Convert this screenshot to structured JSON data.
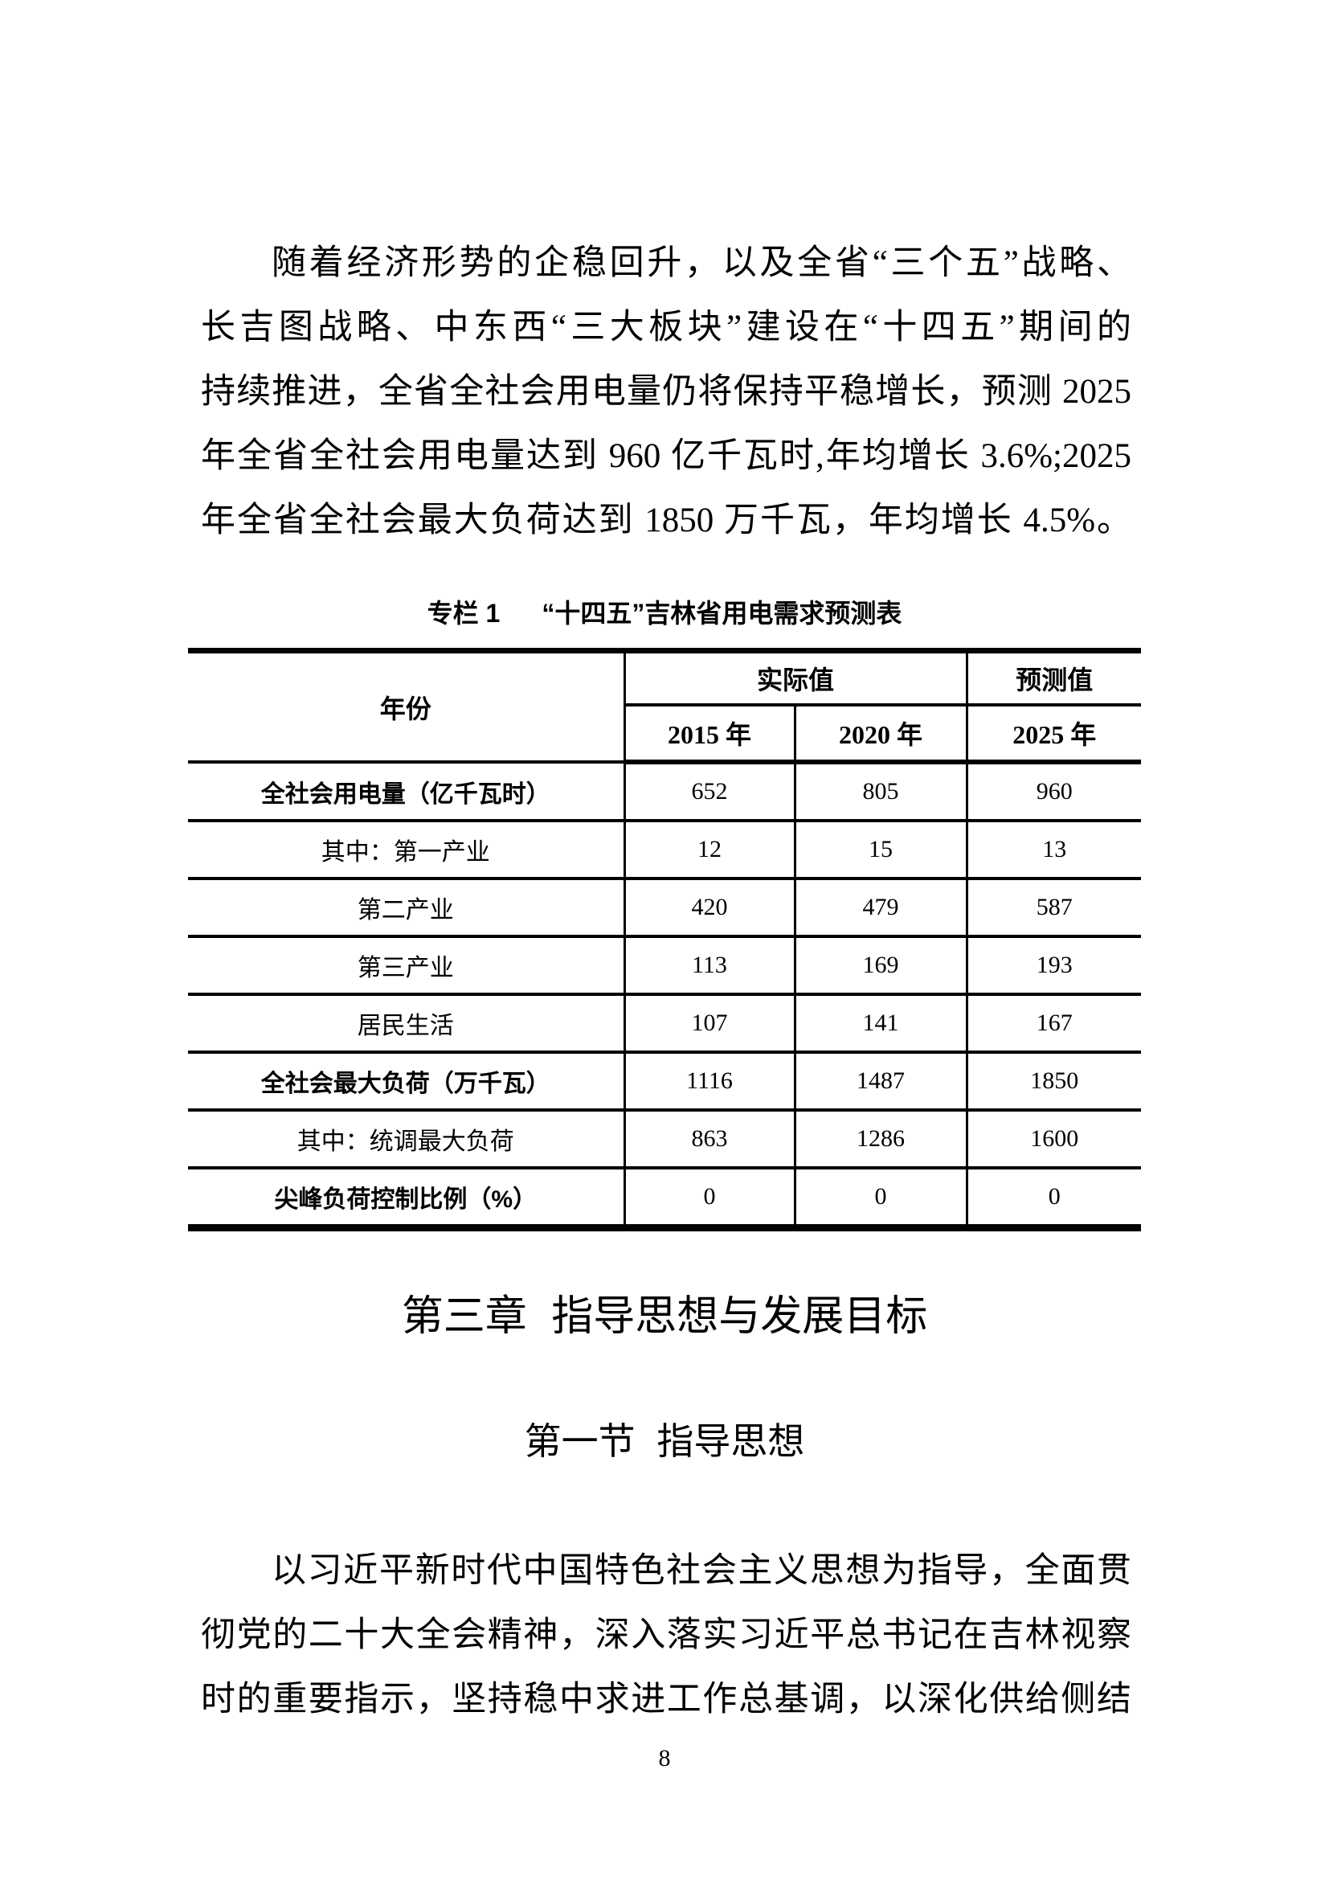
{
  "paragraph1": {
    "lines": [
      "随着经济形势的企稳回升，以及全省“三个五”战略、",
      "长吉图战略、中东西“三大板块”建设在“十四五”期间的",
      "持续推进，全省全社会用电量仍将保持平稳增长，预测 2025",
      "年全省全社会用电量达到 960 亿千瓦时,年均增长 3.6%;2025",
      "年全省全社会最大负荷达到 1850 万千瓦，年均增长 4.5%。"
    ]
  },
  "table": {
    "caption": {
      "label": "专栏 1",
      "title": "“十四五”吉林省用电需求预测表"
    },
    "header": {
      "year": "年份",
      "actual": "实际值",
      "forecast": "预测值",
      "years": [
        "2015 年",
        "2020 年",
        "2025 年"
      ]
    },
    "rows": [
      {
        "label": "全社会用电量（亿千瓦时）",
        "bold": true,
        "values": [
          "652",
          "805",
          "960"
        ]
      },
      {
        "label": "其中：第一产业",
        "bold": false,
        "values": [
          "12",
          "15",
          "13"
        ]
      },
      {
        "label": "第二产业",
        "bold": false,
        "values": [
          "420",
          "479",
          "587"
        ]
      },
      {
        "label": "第三产业",
        "bold": false,
        "values": [
          "113",
          "169",
          "193"
        ]
      },
      {
        "label": "居民生活",
        "bold": false,
        "values": [
          "107",
          "141",
          "167"
        ]
      },
      {
        "label": "全社会最大负荷（万千瓦）",
        "bold": true,
        "values": [
          "1116",
          "1487",
          "1850"
        ]
      },
      {
        "label": "其中：统调最大负荷",
        "bold": false,
        "values": [
          "863",
          "1286",
          "1600"
        ]
      },
      {
        "label": "尖峰负荷控制比例（%）",
        "bold": true,
        "values": [
          "0",
          "0",
          "0"
        ]
      }
    ]
  },
  "chapter_heading": "第三章 指导思想与发展目标",
  "section_heading": "第一节 指导思想",
  "paragraph2": {
    "lines": [
      "以习近平新时代中国特色社会主义思想为指导，全面贯",
      "彻党的二十大全会精神，深入落实习近平总书记在吉林视察",
      "时的重要指示，坚持稳中求进工作总基调，以深化供给侧结"
    ]
  },
  "page": {
    "number": "8"
  }
}
